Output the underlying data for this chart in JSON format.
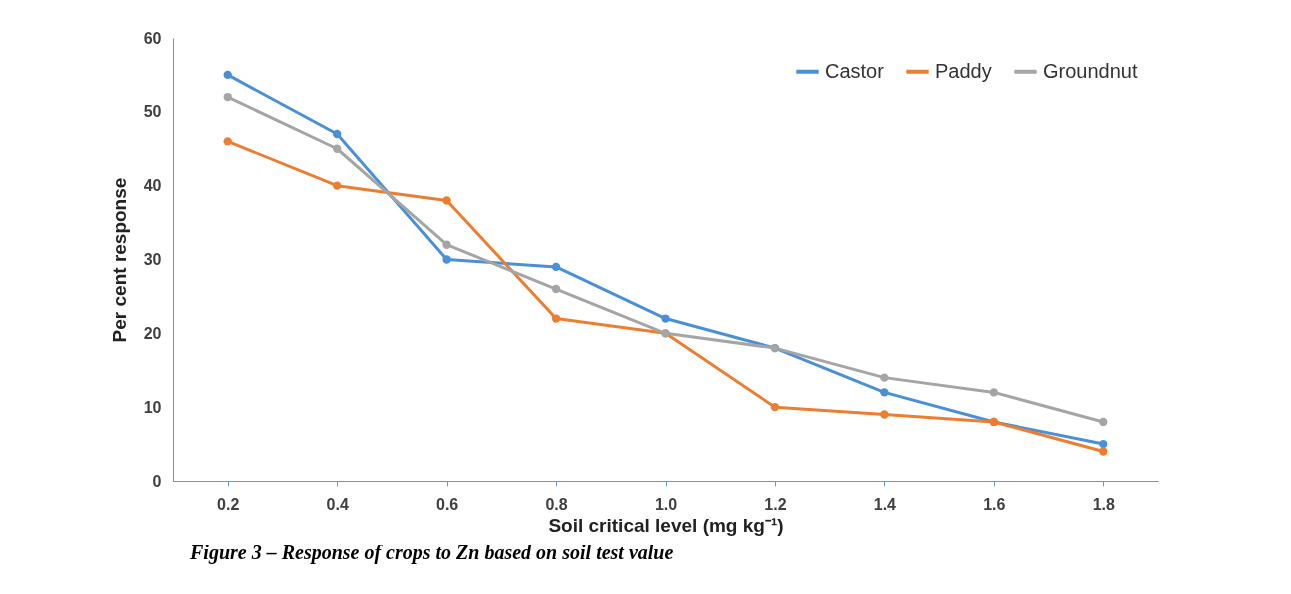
{
  "chart_data": {
    "type": "line",
    "xlabel": "Soil critical level (mg kg⁻¹)",
    "ylabel": "Per cent response",
    "categories": [
      "0.2",
      "0.4",
      "0.6",
      "0.8",
      "1.0",
      "1.2",
      "1.4",
      "1.6",
      "1.8"
    ],
    "series": [
      {
        "name": "Castor",
        "color": "#4a90d9",
        "values": [
          55,
          47,
          30,
          29,
          22,
          18,
          12,
          8,
          5
        ]
      },
      {
        "name": "Paddy",
        "color": "#ed7d31",
        "values": [
          46,
          40,
          38,
          22,
          20,
          10,
          9,
          8,
          4
        ]
      },
      {
        "name": "Groundnut",
        "color": "#a5a5a5",
        "values": [
          52,
          45,
          32,
          26,
          20,
          18,
          14,
          12,
          8
        ]
      }
    ],
    "ylim": [
      0,
      60
    ],
    "yticks": [
      0,
      10,
      20,
      30,
      40,
      50,
      60
    ],
    "grid": false,
    "legend": "top right",
    "marker": "circle",
    "line_style": "solid",
    "annotations": [
      "Figure  3  –  Response of crops to Zn based on soil test value"
    ]
  }
}
